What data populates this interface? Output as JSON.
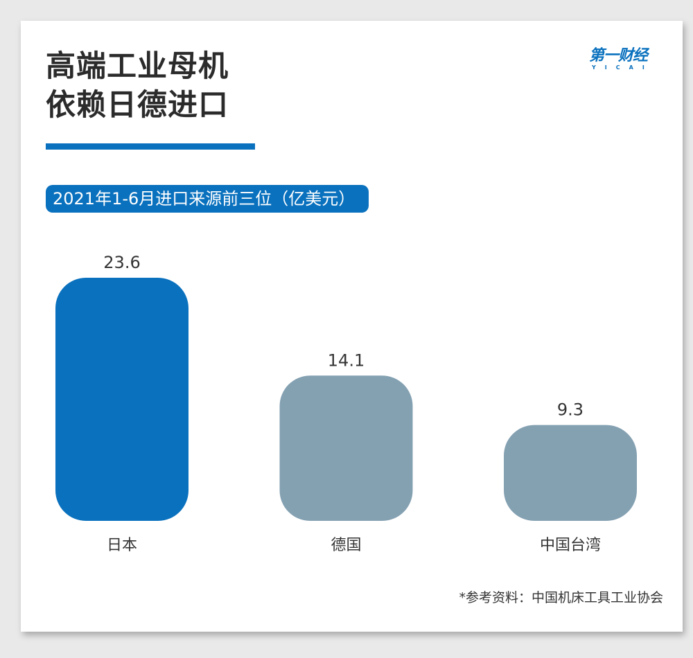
{
  "colors": {
    "accent": "#0a71be",
    "bar_highlight": "#0a71be",
    "bar_default": "#84a1b2",
    "title_text": "#2b2b2b",
    "label_text": "#333333",
    "background": "#ffffff"
  },
  "logo": {
    "main": "第一财经",
    "sub": "YICAI"
  },
  "chart_data": {
    "type": "bar",
    "title": "高端工业母机\n依赖日德进口",
    "subtitle": "2021年1-6月进口来源前三位（亿美元）",
    "categories": [
      "日本",
      "德国",
      "中国台湾"
    ],
    "values": [
      23.6,
      14.1,
      9.3
    ],
    "value_labels": [
      "23.6",
      "14.1",
      "9.3"
    ],
    "highlight_index": 0,
    "grid": false,
    "legend": "none",
    "source": "*参考资料：中国机床工具工业协会"
  }
}
